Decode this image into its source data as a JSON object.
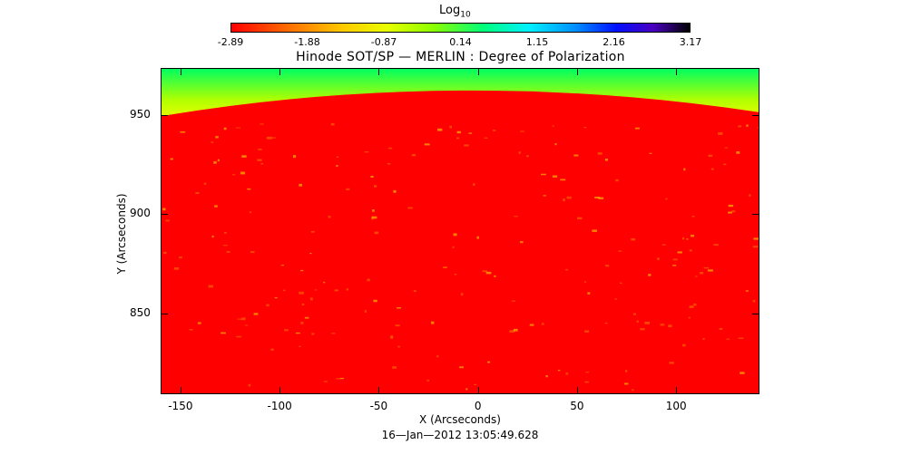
{
  "colorbar": {
    "title_main": "Log",
    "title_sub": "10",
    "ticks": [
      "-2.89",
      "-1.88",
      "-0.87",
      "0.14",
      "1.15",
      "2.16",
      "3.17"
    ],
    "colors": [
      "#ff0000",
      "#ffc800",
      "#8cff00",
      "#00f0ff",
      "#0010ff",
      "#000000"
    ]
  },
  "chart_data": {
    "type": "heatmap",
    "title": "Hinode SOT/SP — MERLIN : Degree of Polarization",
    "xlabel": "X (Arcseconds)",
    "ylabel": "Y (Arcseconds)",
    "xlim": [
      -160,
      142
    ],
    "ylim": [
      809,
      974
    ],
    "xticks": [
      -150,
      -100,
      -50,
      0,
      50,
      100
    ],
    "yticks": [
      850,
      900,
      950
    ],
    "limb_y": [
      950,
      963,
      952
    ],
    "limb_x": [
      -160,
      -10,
      142
    ],
    "value_range_log10": [
      -2.89,
      3.17
    ],
    "disk_color": "#ff0000",
    "offlimb_colors": [
      "#ffff00",
      "#b0ff00",
      "#00ff60"
    ]
  },
  "timestamp": "16—Jan—2012 13:05:49.628"
}
